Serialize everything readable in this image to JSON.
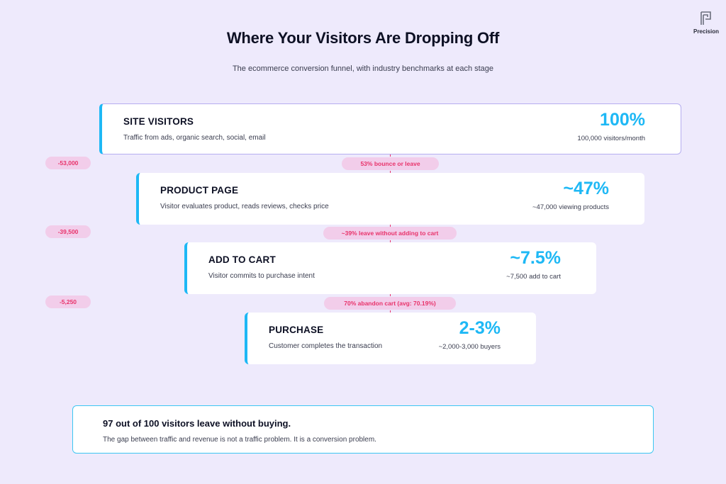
{
  "brand": {
    "name": "Precision",
    "icon": "precision-logo-icon"
  },
  "title": "Where Your Visitors Are Dropping Off",
  "subtitle": "The ecommerce conversion funnel, with industry benchmarks at each stage",
  "stages": [
    {
      "name": "SITE VISITORS",
      "desc": "Traffic from ads, organic search, social, email",
      "pct": "100%",
      "count": "100,000 visitors/month"
    },
    {
      "name": "PRODUCT PAGE",
      "desc": "Visitor evaluates product, reads reviews, checks price",
      "pct": "~47%",
      "count": "~47,000 viewing products"
    },
    {
      "name": "ADD TO CART",
      "desc": "Visitor commits to purchase intent",
      "pct": "~7.5%",
      "count": "~7,500 add to cart"
    },
    {
      "name": "PURCHASE",
      "desc": "Customer completes the transaction",
      "pct": "2-3%",
      "count": "~2,000-3,000 buyers"
    }
  ],
  "dropoffs": [
    {
      "loss": "-53,000",
      "label": "53% bounce or leave"
    },
    {
      "loss": "-39,500",
      "label": "~39% leave without adding to cart"
    },
    {
      "loss": "-5,250",
      "label": "70% abandon cart (avg: 70.19%)"
    }
  ],
  "callout": {
    "headline": "97 out of 100 visitors leave without buying.",
    "body": "The gap between traffic and revenue is not a traffic problem. It is a conversion problem."
  },
  "colors": {
    "accent": "#1eb8f5",
    "drop": "#e8336b",
    "drop_bg": "#f2cdea",
    "background": "#eeeafc"
  }
}
